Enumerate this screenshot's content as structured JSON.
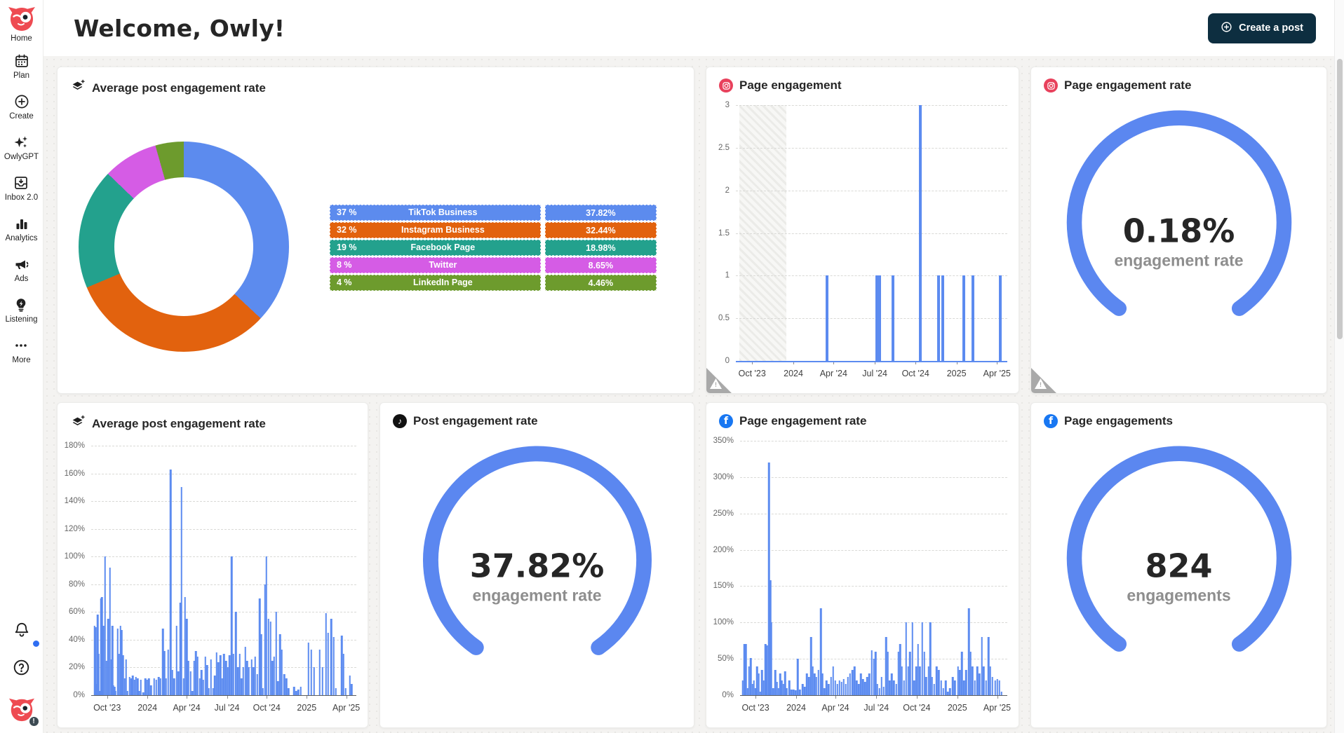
{
  "colors": {
    "bar_blue": "#5C8BF0",
    "gauge_blue": "#5B87F0",
    "button_navy": "#0D2E40",
    "instagram_badge": "#E8415C",
    "facebook_badge": "#1877F2",
    "tiktok_badge": "#111111",
    "donut_blue": "#5C8BEE",
    "donut_orange": "#E2620E",
    "donut_teal": "#23A18D",
    "donut_magenta": "#D55CE5",
    "donut_green": "#6D9B2D"
  },
  "header": {
    "title": "Welcome, Owly!",
    "create_post_label": "Create a post"
  },
  "sidebar": {
    "items": [
      {
        "label": "Home"
      },
      {
        "label": "Plan"
      },
      {
        "label": "Create"
      },
      {
        "label": "OwlyGPT"
      },
      {
        "label": "Inbox 2.0"
      },
      {
        "label": "Analytics"
      },
      {
        "label": "Ads"
      },
      {
        "label": "Listening"
      },
      {
        "label": "More"
      }
    ],
    "help_glyph": "?"
  },
  "chart_data": [
    {
      "type": "pie",
      "title": "Average post engagement rate",
      "icon": "mixed-networks-layers",
      "series": [
        {
          "label": "TikTok Business",
          "pct": "37 %",
          "value": 37.82,
          "display": "37.82%",
          "color": "#5C8BEE"
        },
        {
          "label": "Instagram Business",
          "pct": "32 %",
          "value": 32.44,
          "display": "32.44%",
          "color": "#E2620E"
        },
        {
          "label": "Facebook Page",
          "pct": "19 %",
          "value": 18.98,
          "display": "18.98%",
          "color": "#23A18D"
        },
        {
          "label": "Twitter",
          "pct": "8 %",
          "value": 8.65,
          "display": "8.65%",
          "color": "#D55CE5"
        },
        {
          "label": "LinkedIn Page",
          "pct": "4 %",
          "value": 4.46,
          "display": "4.46%",
          "color": "#6D9B2D"
        }
      ]
    },
    {
      "type": "bar",
      "title": "Page engagement",
      "network": "instagram",
      "warning": true,
      "ylim": [
        0,
        3
      ],
      "yticks": [
        {
          "v": 3,
          "label": "3"
        },
        {
          "v": 2.5,
          "label": "2.5"
        },
        {
          "v": 2,
          "label": "2"
        },
        {
          "v": 1.5,
          "label": "1.5"
        },
        {
          "v": 1,
          "label": "1"
        },
        {
          "v": 0.5,
          "label": "0.5"
        },
        {
          "v": 0,
          "label": "0"
        }
      ],
      "xticks": [
        {
          "f": 0.06,
          "label": "Oct '23"
        },
        {
          "f": 0.212,
          "label": "2024"
        },
        {
          "f": 0.36,
          "label": "Apr '24"
        },
        {
          "f": 0.512,
          "label": "Jul '24"
        },
        {
          "f": 0.662,
          "label": "Oct '24"
        },
        {
          "f": 0.813,
          "label": "2025"
        },
        {
          "f": 0.962,
          "label": "Apr '25"
        }
      ],
      "hatch": [
        0.012,
        0.185
      ],
      "baseline": "blue",
      "bars": [
        [
          0.337,
          1
        ],
        [
          0.52,
          1
        ],
        [
          0.529,
          1
        ],
        [
          0.579,
          1
        ],
        [
          0.68,
          3
        ],
        [
          0.747,
          1
        ],
        [
          0.763,
          1
        ],
        [
          0.84,
          1
        ],
        [
          0.873,
          1
        ],
        [
          0.975,
          1
        ]
      ]
    },
    {
      "type": "gauge",
      "title": "Page engagement rate",
      "network": "instagram",
      "warning": true,
      "value": "0.18%",
      "label": "engagement rate"
    },
    {
      "type": "bar",
      "title": "Average post engagement rate",
      "icon": "mixed-networks-layers",
      "ylim": [
        0,
        180
      ],
      "yticks": [
        {
          "v": 180,
          "label": "180%"
        },
        {
          "v": 160,
          "label": "160%"
        },
        {
          "v": 140,
          "label": "140%"
        },
        {
          "v": 120,
          "label": "120%"
        },
        {
          "v": 100,
          "label": "100%"
        },
        {
          "v": 80,
          "label": "80%"
        },
        {
          "v": 60,
          "label": "60%"
        },
        {
          "v": 40,
          "label": "40%"
        },
        {
          "v": 20,
          "label": "20%"
        },
        {
          "v": 0,
          "label": "0%"
        }
      ],
      "xticks": [
        {
          "f": 0.06,
          "label": "Oct '23"
        },
        {
          "f": 0.212,
          "label": "2024"
        },
        {
          "f": 0.36,
          "label": "Apr '24"
        },
        {
          "f": 0.512,
          "label": "Jul '24"
        },
        {
          "f": 0.662,
          "label": "Oct '24"
        },
        {
          "f": 0.813,
          "label": "2025"
        },
        {
          "f": 0.962,
          "label": "Apr '25"
        }
      ],
      "bars": [
        [
          0.012,
          50
        ],
        [
          0.016,
          49
        ],
        [
          0.02,
          8
        ],
        [
          0.024,
          58
        ],
        [
          0.028,
          30
        ],
        [
          0.032,
          3
        ],
        [
          0.036,
          70
        ],
        [
          0.04,
          71
        ],
        [
          0.046,
          50
        ],
        [
          0.052,
          100
        ],
        [
          0.058,
          25
        ],
        [
          0.064,
          55
        ],
        [
          0.071,
          92
        ],
        [
          0.076,
          26
        ],
        [
          0.08,
          50
        ],
        [
          0.084,
          7
        ],
        [
          0.088,
          6
        ],
        [
          0.092,
          3
        ],
        [
          0.1,
          48
        ],
        [
          0.105,
          30
        ],
        [
          0.11,
          50
        ],
        [
          0.115,
          47
        ],
        [
          0.12,
          29
        ],
        [
          0.126,
          12
        ],
        [
          0.131,
          26
        ],
        [
          0.137,
          3
        ],
        [
          0.145,
          13
        ],
        [
          0.151,
          12
        ],
        [
          0.157,
          14
        ],
        [
          0.163,
          11
        ],
        [
          0.169,
          13
        ],
        [
          0.175,
          12
        ],
        [
          0.181,
          3
        ],
        [
          0.187,
          11
        ],
        [
          0.196,
          2
        ],
        [
          0.204,
          12
        ],
        [
          0.211,
          11
        ],
        [
          0.218,
          12
        ],
        [
          0.226,
          7
        ],
        [
          0.238,
          12
        ],
        [
          0.246,
          11
        ],
        [
          0.254,
          13
        ],
        [
          0.261,
          12
        ],
        [
          0.27,
          48
        ],
        [
          0.276,
          32
        ],
        [
          0.283,
          12
        ],
        [
          0.291,
          33
        ],
        [
          0.3,
          163
        ],
        [
          0.306,
          18
        ],
        [
          0.313,
          12
        ],
        [
          0.322,
          50
        ],
        [
          0.329,
          17
        ],
        [
          0.336,
          67
        ],
        [
          0.341,
          150
        ],
        [
          0.348,
          12
        ],
        [
          0.354,
          71
        ],
        [
          0.36,
          55
        ],
        [
          0.366,
          25
        ],
        [
          0.375,
          17
        ],
        [
          0.381,
          3
        ],
        [
          0.388,
          25
        ],
        [
          0.395,
          32
        ],
        [
          0.402,
          28
        ],
        [
          0.409,
          12
        ],
        [
          0.416,
          18
        ],
        [
          0.423,
          11
        ],
        [
          0.43,
          28
        ],
        [
          0.437,
          22
        ],
        [
          0.444,
          5
        ],
        [
          0.452,
          26
        ],
        [
          0.459,
          5
        ],
        [
          0.466,
          14
        ],
        [
          0.473,
          31
        ],
        [
          0.48,
          24
        ],
        [
          0.487,
          29
        ],
        [
          0.494,
          12
        ],
        [
          0.501,
          30
        ],
        [
          0.508,
          25
        ],
        [
          0.515,
          20
        ],
        [
          0.522,
          29
        ],
        [
          0.53,
          100
        ],
        [
          0.537,
          30
        ],
        [
          0.546,
          60
        ],
        [
          0.553,
          20
        ],
        [
          0.56,
          30
        ],
        [
          0.567,
          12
        ],
        [
          0.574,
          20
        ],
        [
          0.581,
          35
        ],
        [
          0.588,
          25
        ],
        [
          0.595,
          20
        ],
        [
          0.605,
          26
        ],
        [
          0.612,
          20
        ],
        [
          0.619,
          28
        ],
        [
          0.626,
          15
        ],
        [
          0.635,
          70
        ],
        [
          0.641,
          44
        ],
        [
          0.647,
          5
        ],
        [
          0.655,
          80
        ],
        [
          0.661,
          100
        ],
        [
          0.668,
          55
        ],
        [
          0.676,
          53
        ],
        [
          0.683,
          25
        ],
        [
          0.69,
          28
        ],
        [
          0.698,
          60
        ],
        [
          0.705,
          10
        ],
        [
          0.712,
          44
        ],
        [
          0.719,
          33
        ],
        [
          0.728,
          15
        ],
        [
          0.736,
          12
        ],
        [
          0.744,
          5
        ],
        [
          0.765,
          6
        ],
        [
          0.773,
          3
        ],
        [
          0.781,
          4
        ],
        [
          0.79,
          6
        ],
        [
          0.82,
          38
        ],
        [
          0.83,
          33
        ],
        [
          0.84,
          20
        ],
        [
          0.862,
          33
        ],
        [
          0.872,
          20
        ],
        [
          0.885,
          59
        ],
        [
          0.893,
          45
        ],
        [
          0.905,
          55
        ],
        [
          0.915,
          42
        ],
        [
          0.923,
          5
        ],
        [
          0.945,
          43
        ],
        [
          0.952,
          30
        ],
        [
          0.96,
          5
        ],
        [
          0.975,
          14
        ],
        [
          0.982,
          8
        ]
      ]
    },
    {
      "type": "gauge",
      "title": "Post engagement rate",
      "network": "tiktok",
      "value": "37.82%",
      "label": "engagement rate"
    },
    {
      "type": "bar",
      "title": "Page engagement rate",
      "network": "facebook",
      "ylim": [
        0,
        350
      ],
      "yticks": [
        {
          "v": 350,
          "label": "350%"
        },
        {
          "v": 300,
          "label": "300%"
        },
        {
          "v": 250,
          "label": "250%"
        },
        {
          "v": 200,
          "label": "200%"
        },
        {
          "v": 150,
          "label": "150%"
        },
        {
          "v": 100,
          "label": "100%"
        },
        {
          "v": 50,
          "label": "50%"
        },
        {
          "v": 0,
          "label": "0%"
        }
      ],
      "xticks": [
        {
          "f": 0.058,
          "label": "Oct '23"
        },
        {
          "f": 0.21,
          "label": "2024"
        },
        {
          "f": 0.357,
          "label": "Apr '24"
        },
        {
          "f": 0.51,
          "label": "Jul '24"
        },
        {
          "f": 0.661,
          "label": "Oct '24"
        },
        {
          "f": 0.813,
          "label": "2025"
        },
        {
          "f": 0.962,
          "label": "Apr '25"
        }
      ],
      "bars": [
        [
          0.01,
          20
        ],
        [
          0.016,
          70
        ],
        [
          0.022,
          70
        ],
        [
          0.028,
          10
        ],
        [
          0.034,
          40
        ],
        [
          0.04,
          51
        ],
        [
          0.046,
          15
        ],
        [
          0.052,
          20
        ],
        [
          0.058,
          10
        ],
        [
          0.064,
          40
        ],
        [
          0.07,
          30
        ],
        [
          0.076,
          5
        ],
        [
          0.082,
          35
        ],
        [
          0.088,
          20
        ],
        [
          0.095,
          70
        ],
        [
          0.101,
          68
        ],
        [
          0.108,
          320
        ],
        [
          0.113,
          158
        ],
        [
          0.118,
          100
        ],
        [
          0.124,
          10
        ],
        [
          0.132,
          35
        ],
        [
          0.138,
          18
        ],
        [
          0.144,
          10
        ],
        [
          0.15,
          30
        ],
        [
          0.156,
          20
        ],
        [
          0.162,
          15
        ],
        [
          0.168,
          33
        ],
        [
          0.174,
          10
        ],
        [
          0.184,
          20
        ],
        [
          0.192,
          8
        ],
        [
          0.2,
          8
        ],
        [
          0.208,
          7
        ],
        [
          0.216,
          50
        ],
        [
          0.224,
          8
        ],
        [
          0.234,
          15
        ],
        [
          0.242,
          12
        ],
        [
          0.25,
          30
        ],
        [
          0.258,
          25
        ],
        [
          0.266,
          80
        ],
        [
          0.272,
          40
        ],
        [
          0.279,
          30
        ],
        [
          0.286,
          25
        ],
        [
          0.293,
          35
        ],
        [
          0.302,
          120
        ],
        [
          0.308,
          30
        ],
        [
          0.315,
          10
        ],
        [
          0.324,
          20
        ],
        [
          0.332,
          15
        ],
        [
          0.34,
          25
        ],
        [
          0.348,
          40
        ],
        [
          0.356,
          20
        ],
        [
          0.364,
          15
        ],
        [
          0.372,
          20
        ],
        [
          0.38,
          18
        ],
        [
          0.388,
          22
        ],
        [
          0.396,
          15
        ],
        [
          0.404,
          25
        ],
        [
          0.412,
          30
        ],
        [
          0.42,
          35
        ],
        [
          0.428,
          40
        ],
        [
          0.436,
          20
        ],
        [
          0.444,
          15
        ],
        [
          0.452,
          30
        ],
        [
          0.46,
          22
        ],
        [
          0.468,
          18
        ],
        [
          0.476,
          25
        ],
        [
          0.484,
          30
        ],
        [
          0.493,
          62
        ],
        [
          0.5,
          50
        ],
        [
          0.507,
          60
        ],
        [
          0.514,
          15
        ],
        [
          0.521,
          10
        ],
        [
          0.53,
          25
        ],
        [
          0.538,
          12
        ],
        [
          0.546,
          80
        ],
        [
          0.553,
          60
        ],
        [
          0.56,
          20
        ],
        [
          0.568,
          30
        ],
        [
          0.576,
          20
        ],
        [
          0.584,
          15
        ],
        [
          0.592,
          60
        ],
        [
          0.599,
          70
        ],
        [
          0.606,
          40
        ],
        [
          0.613,
          20
        ],
        [
          0.622,
          100
        ],
        [
          0.629,
          40
        ],
        [
          0.636,
          60
        ],
        [
          0.645,
          100
        ],
        [
          0.652,
          20
        ],
        [
          0.659,
          40
        ],
        [
          0.666,
          70
        ],
        [
          0.673,
          40
        ],
        [
          0.682,
          100
        ],
        [
          0.689,
          60
        ],
        [
          0.696,
          25
        ],
        [
          0.705,
          40
        ],
        [
          0.712,
          100
        ],
        [
          0.719,
          25
        ],
        [
          0.726,
          15
        ],
        [
          0.736,
          40
        ],
        [
          0.744,
          35
        ],
        [
          0.752,
          20
        ],
        [
          0.76,
          10
        ],
        [
          0.77,
          20
        ],
        [
          0.778,
          5
        ],
        [
          0.786,
          10
        ],
        [
          0.796,
          25
        ],
        [
          0.804,
          20
        ],
        [
          0.815,
          40
        ],
        [
          0.822,
          35
        ],
        [
          0.83,
          60
        ],
        [
          0.838,
          20
        ],
        [
          0.846,
          35
        ],
        [
          0.856,
          120
        ],
        [
          0.863,
          60
        ],
        [
          0.87,
          40
        ],
        [
          0.878,
          20
        ],
        [
          0.888,
          40
        ],
        [
          0.896,
          30
        ],
        [
          0.905,
          80
        ],
        [
          0.912,
          40
        ],
        [
          0.92,
          20
        ],
        [
          0.93,
          80
        ],
        [
          0.937,
          40
        ],
        [
          0.944,
          25
        ],
        [
          0.955,
          20
        ],
        [
          0.962,
          22
        ],
        [
          0.97,
          20
        ],
        [
          0.978,
          5
        ]
      ]
    },
    {
      "type": "gauge",
      "title": "Page engagements",
      "network": "facebook",
      "value": "824",
      "label": "engagements"
    }
  ]
}
